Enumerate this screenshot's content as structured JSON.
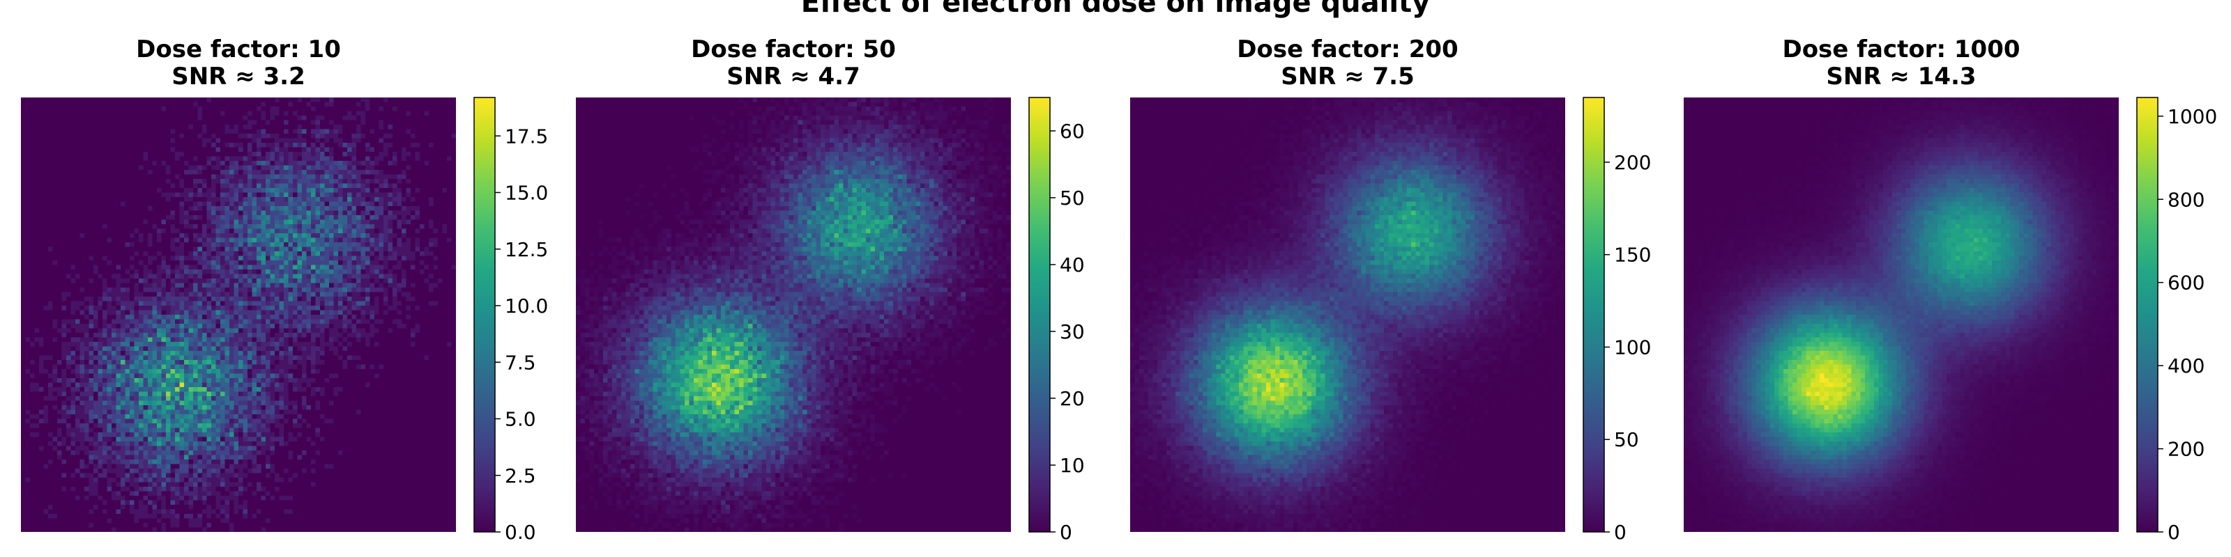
{
  "figure_title": "Effect of electron dose on image quality",
  "colormap": "viridis",
  "chart_data": [
    {
      "type": "heatmap",
      "title_line1": "Dose factor: 10",
      "title_line2": "SNR ≈ 3.2",
      "dose_factor": 10,
      "snr": 3.2,
      "grid": [
        96,
        96
      ],
      "blobs": [
        {
          "cx": 0.36,
          "cy": 0.67,
          "sigma": 0.12,
          "amp": 9.5
        },
        {
          "cx": 0.63,
          "cy": 0.32,
          "sigma": 0.12,
          "amp": 6.8
        }
      ],
      "noise": "poisson",
      "colorbar": {
        "min": 0,
        "max": 19.2,
        "ticks": [
          0.0,
          2.5,
          5.0,
          7.5,
          10.0,
          12.5,
          15.0,
          17.5
        ],
        "tick_labels": [
          "0.0",
          "2.5",
          "5.0",
          "7.5",
          "10.0",
          "12.5",
          "15.0",
          "17.5"
        ]
      }
    },
    {
      "type": "heatmap",
      "title_line1": "Dose factor: 50",
      "title_line2": "SNR ≈ 4.7",
      "dose_factor": 50,
      "snr": 4.7,
      "grid": [
        96,
        96
      ],
      "blobs": [
        {
          "cx": 0.33,
          "cy": 0.65,
          "sigma": 0.12,
          "amp": 50
        },
        {
          "cx": 0.65,
          "cy": 0.3,
          "sigma": 0.12,
          "amp": 35
        }
      ],
      "noise": "poisson",
      "colorbar": {
        "min": 0,
        "max": 65,
        "ticks": [
          0,
          10,
          20,
          30,
          40,
          50,
          60
        ],
        "tick_labels": [
          "0",
          "10",
          "20",
          "30",
          "40",
          "50",
          "60"
        ]
      }
    },
    {
      "type": "heatmap",
      "title_line1": "Dose factor: 200",
      "title_line2": "SNR ≈ 7.5",
      "dose_factor": 200,
      "snr": 7.5,
      "grid": [
        96,
        96
      ],
      "blobs": [
        {
          "cx": 0.33,
          "cy": 0.66,
          "sigma": 0.12,
          "amp": 205
        },
        {
          "cx": 0.65,
          "cy": 0.31,
          "sigma": 0.12,
          "amp": 140
        }
      ],
      "noise": "poisson",
      "colorbar": {
        "min": 0,
        "max": 235,
        "ticks": [
          0,
          50,
          100,
          150,
          200
        ],
        "tick_labels": [
          "0",
          "50",
          "100",
          "150",
          "200"
        ]
      }
    },
    {
      "type": "heatmap",
      "title_line1": "Dose factor: 1000",
      "title_line2": "SNR ≈ 14.3",
      "dose_factor": 1000,
      "snr": 14.3,
      "grid": [
        96,
        96
      ],
      "blobs": [
        {
          "cx": 0.33,
          "cy": 0.66,
          "sigma": 0.12,
          "amp": 1000
        },
        {
          "cx": 0.66,
          "cy": 0.34,
          "sigma": 0.12,
          "amp": 650
        }
      ],
      "noise": "poisson",
      "colorbar": {
        "min": 0,
        "max": 1045,
        "ticks": [
          0,
          200,
          400,
          600,
          800,
          1000
        ],
        "tick_labels": [
          "0",
          "200",
          "400",
          "600",
          "800",
          "1000"
        ]
      }
    }
  ]
}
